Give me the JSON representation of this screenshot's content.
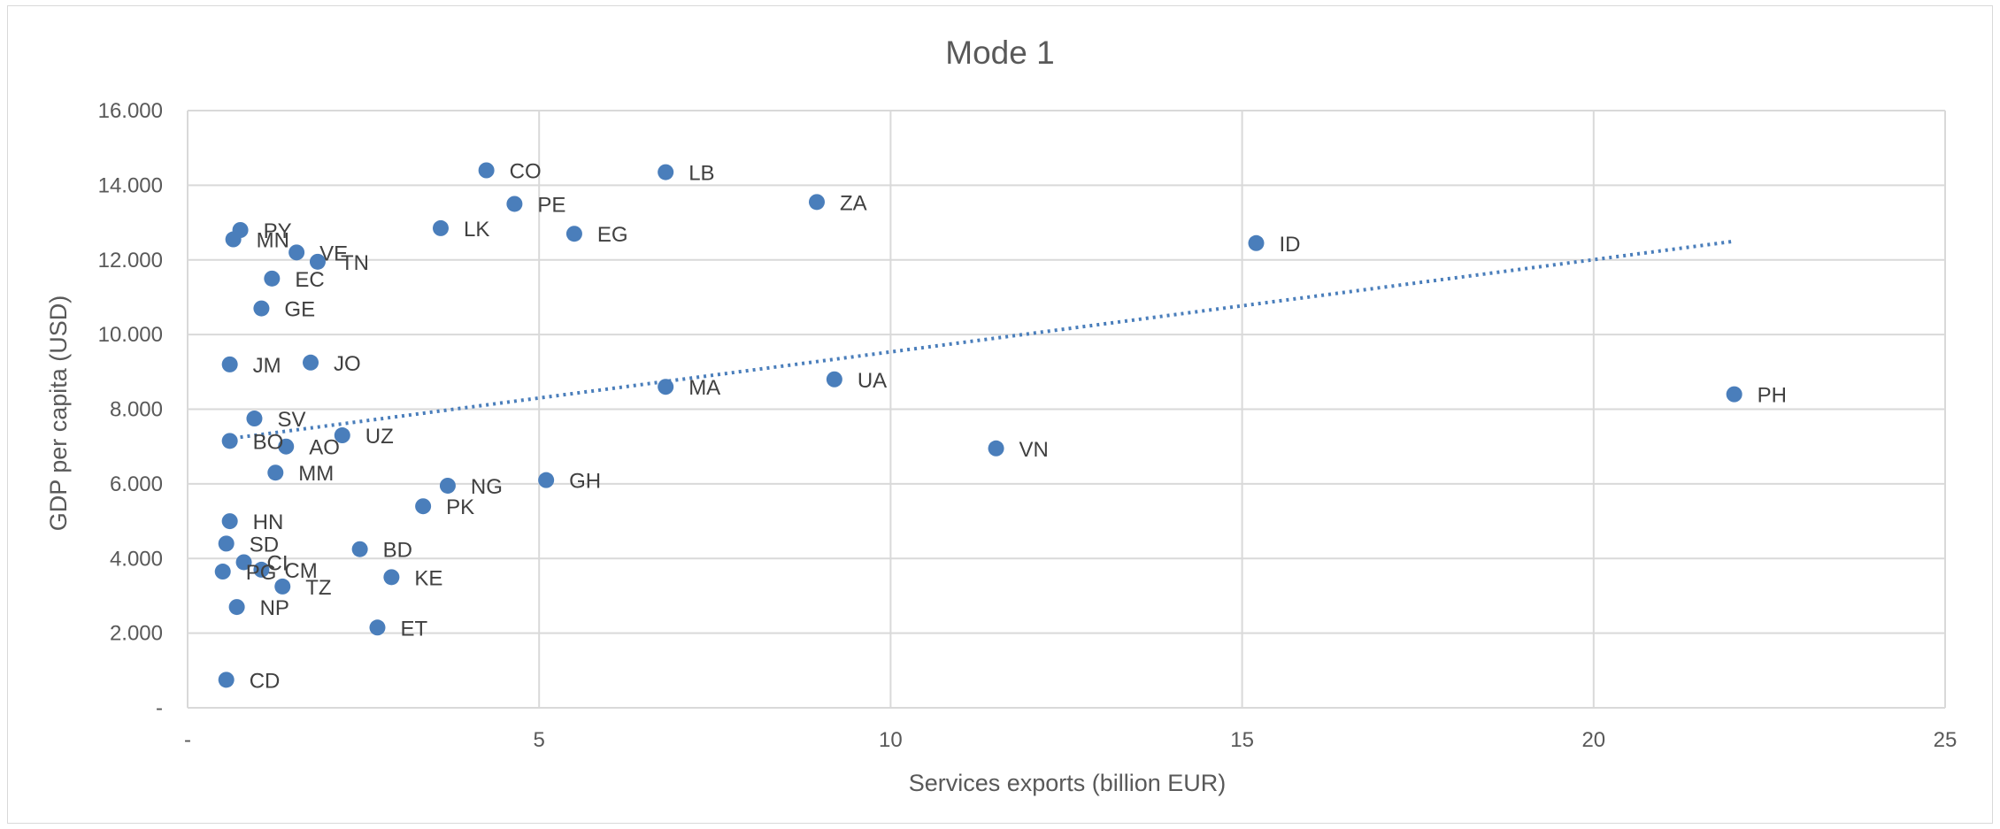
{
  "chart_data": {
    "type": "scatter",
    "title": "Mode 1",
    "xlabel": "Services exports (billion EUR)",
    "ylabel": "GDP per capita (USD)",
    "xlim": [
      0,
      25
    ],
    "ylim": [
      0,
      16000
    ],
    "x_ticks": [
      {
        "value": 0,
        "label": "-"
      },
      {
        "value": 5,
        "label": "5"
      },
      {
        "value": 10,
        "label": "10"
      },
      {
        "value": 15,
        "label": "15"
      },
      {
        "value": 20,
        "label": "20"
      },
      {
        "value": 25,
        "label": "25"
      }
    ],
    "y_ticks": [
      {
        "value": 0,
        "label": "-"
      },
      {
        "value": 2000,
        "label": "2.000"
      },
      {
        "value": 4000,
        "label": "4.000"
      },
      {
        "value": 6000,
        "label": "6.000"
      },
      {
        "value": 8000,
        "label": "8.000"
      },
      {
        "value": 10000,
        "label": "10.000"
      },
      {
        "value": 12000,
        "label": "12.000"
      },
      {
        "value": 14000,
        "label": "14.000"
      },
      {
        "value": 16000,
        "label": "16.000"
      }
    ],
    "grid": true,
    "legend": "none",
    "trendline": {
      "type": "linear",
      "x": [
        0.55,
        22.0
      ],
      "y": [
        7200,
        12500
      ]
    },
    "color": "#4a7ebb",
    "points": [
      {
        "label": "CO",
        "x": 4.25,
        "y": 14400
      },
      {
        "label": "LB",
        "x": 6.8,
        "y": 14350
      },
      {
        "label": "PE",
        "x": 4.65,
        "y": 13500
      },
      {
        "label": "ZA",
        "x": 8.95,
        "y": 13550
      },
      {
        "label": "PY",
        "x": 0.75,
        "y": 12800
      },
      {
        "label": "LK",
        "x": 3.6,
        "y": 12850
      },
      {
        "label": "EG",
        "x": 5.5,
        "y": 12700
      },
      {
        "label": "MN",
        "x": 0.65,
        "y": 12550
      },
      {
        "label": "ID",
        "x": 15.2,
        "y": 12450
      },
      {
        "label": "VE",
        "x": 1.55,
        "y": 12200
      },
      {
        "label": "TN",
        "x": 1.85,
        "y": 11950
      },
      {
        "label": "EC",
        "x": 1.2,
        "y": 11500
      },
      {
        "label": "GE",
        "x": 1.05,
        "y": 10700
      },
      {
        "label": "JO",
        "x": 1.75,
        "y": 9250
      },
      {
        "label": "JM",
        "x": 0.6,
        "y": 9200
      },
      {
        "label": "UA",
        "x": 9.2,
        "y": 8800
      },
      {
        "label": "MA",
        "x": 6.8,
        "y": 8600
      },
      {
        "label": "PH",
        "x": 22.0,
        "y": 8400
      },
      {
        "label": "SV",
        "x": 0.95,
        "y": 7750
      },
      {
        "label": "UZ",
        "x": 2.2,
        "y": 7300
      },
      {
        "label": "BO",
        "x": 0.6,
        "y": 7150
      },
      {
        "label": "AO",
        "x": 1.4,
        "y": 7000
      },
      {
        "label": "VN",
        "x": 11.5,
        "y": 6950
      },
      {
        "label": "MM",
        "x": 1.25,
        "y": 6300
      },
      {
        "label": "GH",
        "x": 5.1,
        "y": 6100
      },
      {
        "label": "NG",
        "x": 3.7,
        "y": 5950
      },
      {
        "label": "PK",
        "x": 3.35,
        "y": 5400
      },
      {
        "label": "HN",
        "x": 0.6,
        "y": 5000
      },
      {
        "label": "SD",
        "x": 0.55,
        "y": 4400
      },
      {
        "label": "BD",
        "x": 2.45,
        "y": 4250
      },
      {
        "label": "CI",
        "x": 0.8,
        "y": 3900
      },
      {
        "label": "CM",
        "x": 1.05,
        "y": 3700
      },
      {
        "label": "PG",
        "x": 0.5,
        "y": 3650
      },
      {
        "label": "KE",
        "x": 2.9,
        "y": 3500
      },
      {
        "label": "TZ",
        "x": 1.35,
        "y": 3250
      },
      {
        "label": "NP",
        "x": 0.7,
        "y": 2700
      },
      {
        "label": "ET",
        "x": 2.7,
        "y": 2150
      },
      {
        "label": "CD",
        "x": 0.55,
        "y": 750
      }
    ]
  }
}
